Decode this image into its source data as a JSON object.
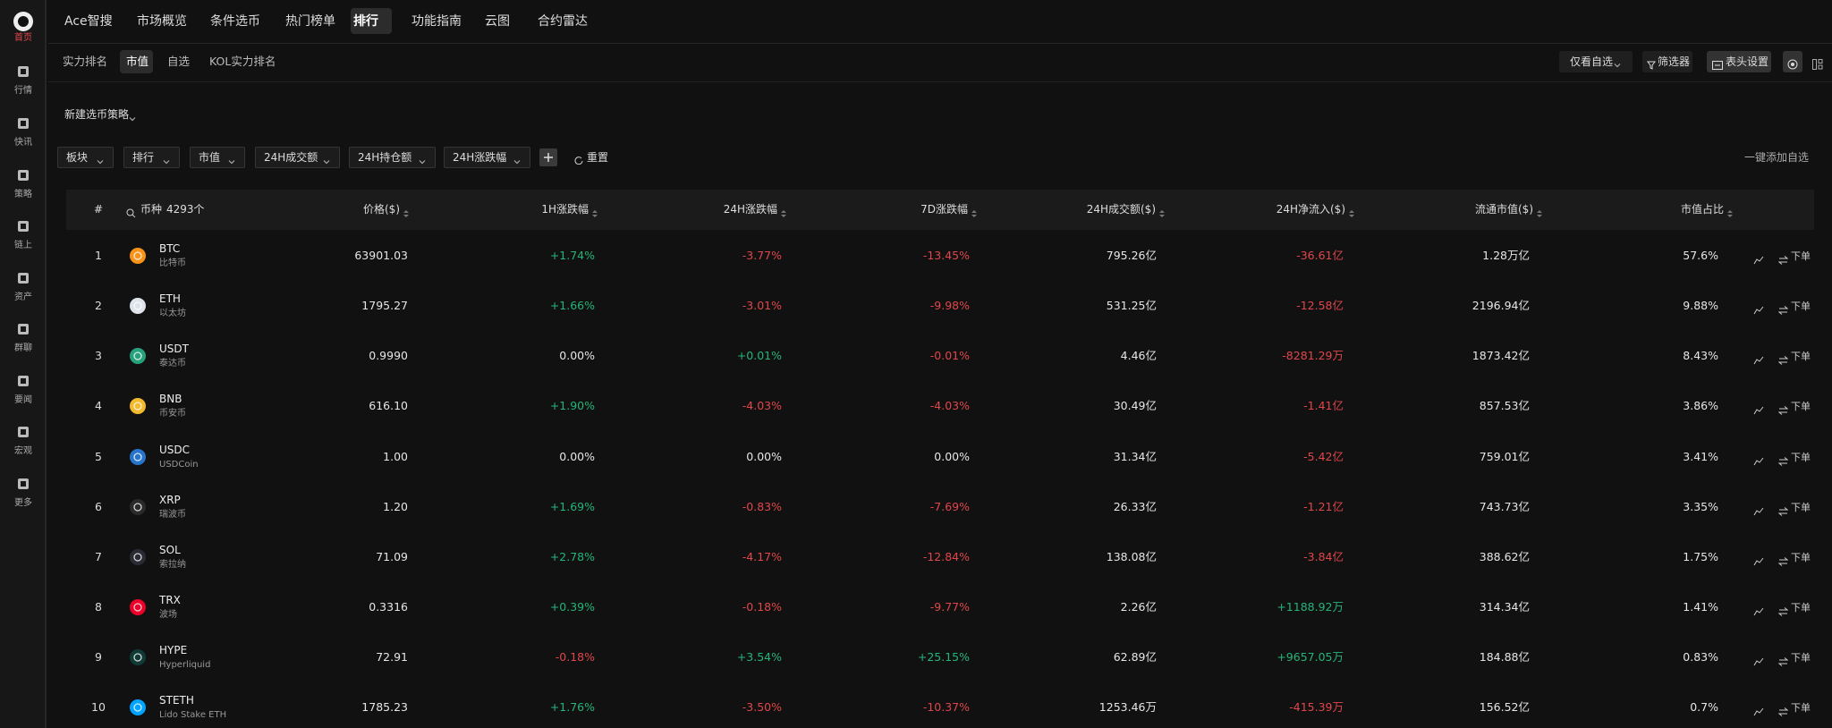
{
  "sidebar": [
    "首页",
    "行情",
    "快讯",
    "策略",
    "链上",
    "资产",
    "群聊",
    "要闻",
    "宏观",
    "更多"
  ],
  "nav": [
    "Ace智搜",
    "市场概览",
    "条件选币",
    "热门榜单",
    "排行",
    "功能指南",
    "云图",
    "合约雷达"
  ],
  "subnav": [
    "实力排名",
    "市值",
    "自选",
    "KOL实力排名"
  ],
  "toolbar": {
    "watchlist": "仅看自选",
    "screener": "筛选器",
    "columns": "表头设置"
  },
  "strategy": "新建选币策略",
  "filters": [
    "板块",
    "排行",
    "市值",
    "24H成交额",
    "24H持仓额",
    "24H涨跌幅"
  ],
  "reset": "重置",
  "add_all": "一键添加自选",
  "table": {
    "headers": [
      "#",
      "币种",
      "价格($)",
      "1H涨跌幅",
      "24H涨跌幅",
      "7D涨跌幅",
      "24H成交额($)",
      "24H净流入($)",
      "流通市值($)",
      "市值占比"
    ],
    "coin_count": "4293个",
    "order": "下单",
    "rows": [
      [
        "1",
        "BTC",
        "比特币",
        "63901.03",
        "+1.74%",
        "-3.77%",
        "-13.45%",
        "795.26亿",
        "-36.61亿",
        "1.28万亿",
        "57.6%"
      ],
      [
        "2",
        "ETH",
        "以太坊",
        "1795.27",
        "+1.66%",
        "-3.01%",
        "-9.98%",
        "531.25亿",
        "-12.58亿",
        "2196.94亿",
        "9.88%"
      ],
      [
        "3",
        "USDT",
        "泰达币",
        "0.9990",
        "0.00%",
        "+0.01%",
        "-0.01%",
        "4.46亿",
        "-8281.29万",
        "1873.42亿",
        "8.43%"
      ],
      [
        "4",
        "BNB",
        "币安币",
        "616.10",
        "+1.90%",
        "-4.03%",
        "-4.03%",
        "30.49亿",
        "-1.41亿",
        "857.53亿",
        "3.86%"
      ],
      [
        "5",
        "USDC",
        "USDCoin",
        "1.00",
        "0.00%",
        "0.00%",
        "0.00%",
        "31.34亿",
        "-5.42亿",
        "759.01亿",
        "3.41%"
      ],
      [
        "6",
        "XRP",
        "瑞波币",
        "1.20",
        "+1.69%",
        "-0.83%",
        "-7.69%",
        "26.33亿",
        "-1.21亿",
        "743.73亿",
        "3.35%"
      ],
      [
        "7",
        "SOL",
        "索拉纳",
        "71.09",
        "+2.78%",
        "-4.17%",
        "-12.84%",
        "138.08亿",
        "-3.84亿",
        "388.62亿",
        "1.75%"
      ],
      [
        "8",
        "TRX",
        "波场",
        "0.3316",
        "+0.39%",
        "-0.18%",
        "-9.77%",
        "2.26亿",
        "+1188.92万",
        "314.34亿",
        "1.41%"
      ],
      [
        "9",
        "HYPE",
        "Hyperliquid",
        "72.91",
        "-0.18%",
        "+3.54%",
        "+25.15%",
        "62.89亿",
        "+9657.05万",
        "184.88亿",
        "0.83%"
      ],
      [
        "10",
        "STETH",
        "Lido Stake ETH",
        "1785.23",
        "+1.76%",
        "-3.50%",
        "-10.37%",
        "1253.46万",
        "-415.39万",
        "156.52亿",
        "0.7%"
      ]
    ]
  }
}
